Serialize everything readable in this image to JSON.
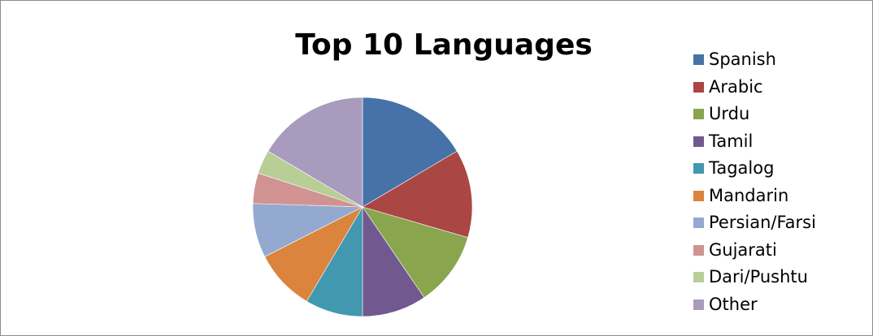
{
  "chart_data": {
    "type": "pie",
    "title": "Top 10 Languages",
    "legend_position": "right",
    "categories": [
      "Spanish",
      "Arabic",
      "Urdu",
      "Tamil",
      "Tagalog",
      "Mandarin",
      "Persian/Farsi",
      "Gujarati",
      "Dari/Pushtu",
      "Other"
    ],
    "values": [
      16.5,
      13.0,
      11.0,
      9.5,
      8.5,
      9.0,
      8.0,
      4.5,
      3.5,
      16.5
    ],
    "colors": [
      "#4672a8",
      "#aa4644",
      "#89a54e",
      "#71588f",
      "#4298ae",
      "#db843d",
      "#93a9d0",
      "#d09392",
      "#b9cd96",
      "#a99bbd"
    ]
  }
}
